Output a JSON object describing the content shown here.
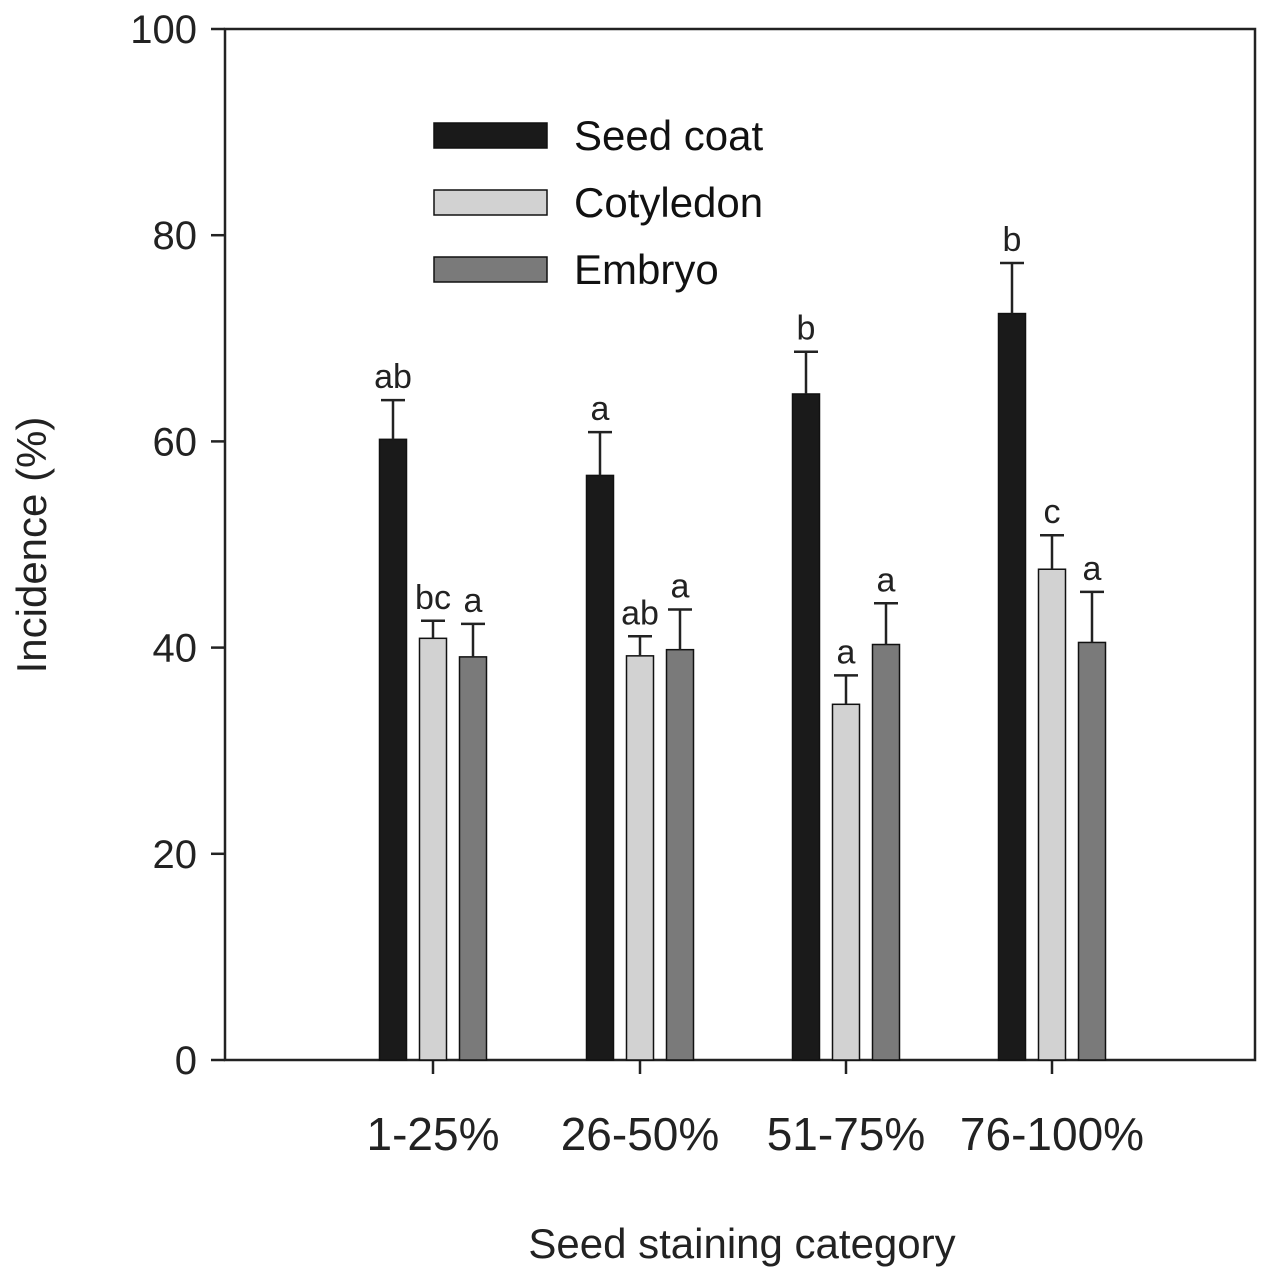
{
  "chart_data": {
    "type": "bar",
    "title": "",
    "xlabel": "Seed staining category",
    "ylabel": "Incidence (%)",
    "ylim": [
      0,
      100
    ],
    "yticks": [
      "0",
      "20",
      "40",
      "60",
      "80",
      "100"
    ],
    "categories": [
      "1-25%",
      "26-50%",
      "51-75%",
      "76-100%"
    ],
    "legend_position": "top-left",
    "series": [
      {
        "name": "Seed coat",
        "color": "#1a1a1a",
        "values": [
          60.2,
          56.7,
          64.6,
          72.4
        ],
        "errors": [
          3.8,
          4.2,
          4.1,
          4.9
        ],
        "sig_labels": [
          "ab",
          "a",
          "b",
          "b"
        ]
      },
      {
        "name": "Cotyledon",
        "color": "#d2d2d2",
        "values": [
          40.9,
          39.2,
          34.5,
          47.6
        ],
        "errors": [
          1.7,
          1.9,
          2.8,
          3.3
        ],
        "sig_labels": [
          "bc",
          "ab",
          "a",
          "c"
        ]
      },
      {
        "name": "Embryo",
        "color": "#7a7a7a",
        "values": [
          39.1,
          39.8,
          40.3,
          40.5
        ],
        "errors": [
          3.2,
          3.9,
          4.0,
          4.9
        ],
        "sig_labels": [
          "a",
          "a",
          "a",
          "a"
        ]
      }
    ]
  }
}
